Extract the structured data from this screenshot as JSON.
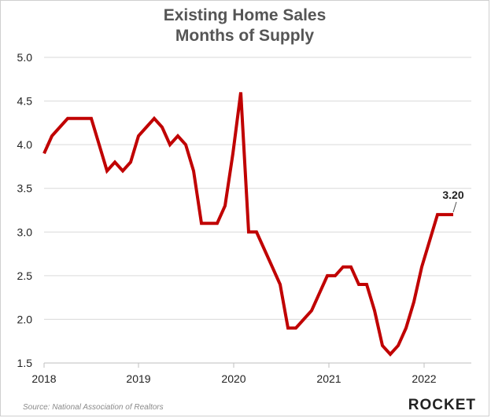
{
  "title_line1": "Existing Home Sales",
  "title_line2": "Months of Supply",
  "source": "Source: National Association of Realtors",
  "brand": "ROCKET",
  "colors": {
    "line": "#c00000",
    "grid": "#d9d9d9",
    "title": "#555555"
  },
  "chart_data": {
    "type": "line",
    "title": "Existing Home Sales Months of Supply",
    "xlabel": "",
    "ylabel": "",
    "ylim": [
      1.5,
      5.0
    ],
    "yticks": [
      "1.5",
      "2.0",
      "2.5",
      "3.0",
      "3.5",
      "4.0",
      "4.5",
      "5.0"
    ],
    "xticks": [
      "2018",
      "2019",
      "2020",
      "2021",
      "2022"
    ],
    "grid": "horizontal",
    "annotation": {
      "label": "3.20",
      "at": "last point"
    },
    "series": [
      {
        "values": [
          3.9,
          4.1,
          4.2,
          4.3,
          4.3,
          4.3,
          4.3,
          4.0,
          3.7,
          3.8,
          3.7,
          3.8,
          4.1,
          4.2,
          4.3,
          4.2,
          4.0,
          4.1,
          4.0,
          3.7,
          3.1,
          3.1,
          3.1,
          3.3,
          3.9,
          4.6,
          3.0,
          3.0,
          2.8,
          2.6,
          2.4,
          1.9,
          1.9,
          2.0,
          2.1,
          2.3,
          2.5,
          2.5,
          2.6,
          2.6,
          2.4,
          2.4,
          2.1,
          1.7,
          1.6,
          1.7,
          1.9,
          2.2,
          2.6,
          2.9,
          3.2,
          3.2,
          3.2
        ]
      }
    ]
  }
}
